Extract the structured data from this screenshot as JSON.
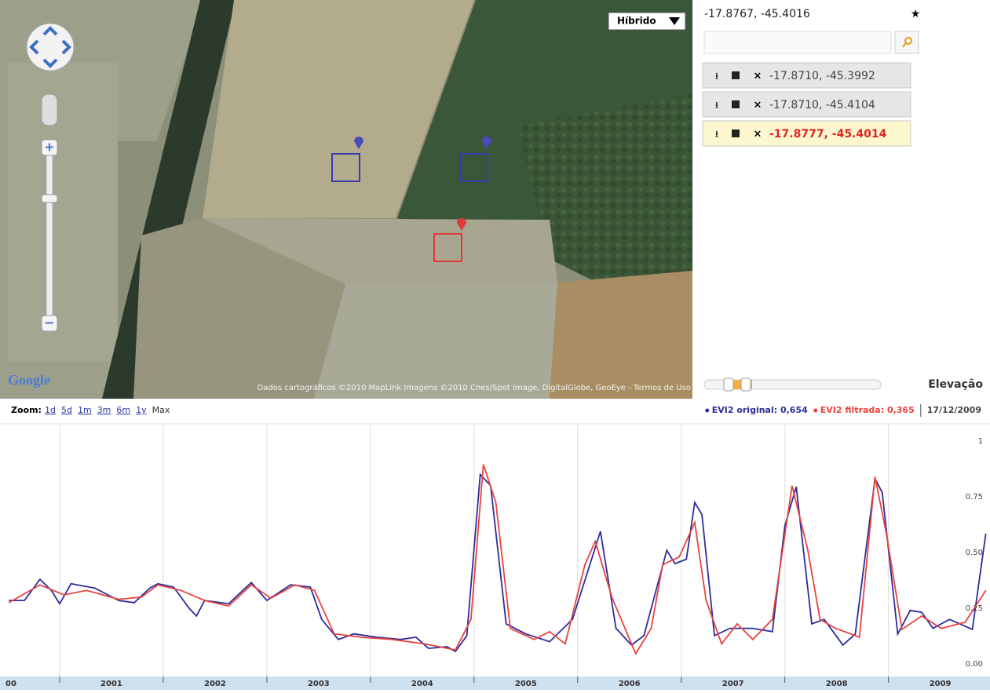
{
  "map": {
    "map_type": "Híbrido",
    "logo": "Google",
    "attribution": "Dados cartográficos ©2010 MapLink Imagens ©2010 Cnes/Spot Image, DigitalGlobe, GeoEye - Termos de Uso"
  },
  "sidebar": {
    "current_coords": "-17.8767, -45.4016",
    "points": [
      {
        "coords": "-17.8710, -45.3992"
      },
      {
        "coords": "-17.8710, -45.4104"
      },
      {
        "coords": "-17.8777, -45.4014"
      }
    ],
    "elevation_label": "Elevação"
  },
  "chart": {
    "type": "line",
    "zoom_label": "Zoom:",
    "zoom_options": [
      "1d",
      "5d",
      "1m",
      "3m",
      "6m",
      "1y",
      "Max"
    ],
    "date": "17/12/2009",
    "xlim": [
      2000.5,
      2009.95
    ],
    "ylim": [
      0,
      1
    ],
    "xticks": [
      2001,
      2002,
      2003,
      2004,
      2005,
      2006,
      2007,
      2008,
      2009
    ],
    "year_labels": [
      "00",
      "2001",
      "2002",
      "2003",
      "2004",
      "2005",
      "2006",
      "2007",
      "2008",
      "2009"
    ],
    "yticks": [
      {
        "value": 0,
        "label": "0.00"
      },
      {
        "value": 0.25,
        "label": "0.25"
      },
      {
        "value": 0.5,
        "label": "0.50"
      },
      {
        "value": 0.75,
        "label": "0.75"
      },
      1
    ],
    "series": [
      {
        "name": "EVI2 original: 0,654",
        "color": "#2c2c9c",
        "x": [
          2000.51,
          2000.66,
          2000.81,
          2000.92,
          2001.0,
          2001.11,
          2001.34,
          2001.57,
          2001.72,
          2001.87,
          2001.95,
          2002.1,
          2002.25,
          2002.32,
          2002.4,
          2002.63,
          2002.85,
          2003.0,
          2003.23,
          2003.42,
          2003.53,
          2003.69,
          2003.84,
          2004.06,
          2004.29,
          2004.44,
          2004.56,
          2004.74,
          2004.82,
          2004.93,
          2005.06,
          2005.16,
          2005.31,
          2005.5,
          2005.73,
          2005.95,
          2006.22,
          2006.37,
          2006.52,
          2006.64,
          2006.86,
          2006.94,
          2007.05,
          2007.13,
          2007.2,
          2007.32,
          2007.47,
          2007.69,
          2007.88,
          2008.0,
          2008.11,
          2008.26,
          2008.38,
          2008.56,
          2008.68,
          2008.87,
          2008.94,
          2009.09,
          2009.21,
          2009.32,
          2009.43,
          2009.59,
          2009.81,
          2009.94
        ],
        "values": [
          0.285,
          0.285,
          0.38,
          0.33,
          0.27,
          0.36,
          0.34,
          0.285,
          0.275,
          0.34,
          0.36,
          0.345,
          0.25,
          0.215,
          0.285,
          0.27,
          0.365,
          0.285,
          0.355,
          0.345,
          0.2,
          0.11,
          0.135,
          0.12,
          0.11,
          0.12,
          0.07,
          0.077,
          0.056,
          0.127,
          0.85,
          0.8,
          0.18,
          0.135,
          0.1,
          0.2,
          0.595,
          0.16,
          0.085,
          0.127,
          0.51,
          0.45,
          0.47,
          0.725,
          0.67,
          0.127,
          0.16,
          0.16,
          0.145,
          0.62,
          0.795,
          0.18,
          0.2,
          0.085,
          0.134,
          0.83,
          0.77,
          0.134,
          0.24,
          0.232,
          0.16,
          0.2,
          0.155,
          0.585
        ]
      },
      {
        "name": "EVI2 filtrada: 0,365",
        "color": "#e8433f",
        "x": [
          2000.51,
          2000.81,
          2001.04,
          2001.26,
          2001.57,
          2001.79,
          2001.95,
          2002.17,
          2002.4,
          2002.63,
          2002.85,
          2003.04,
          2003.27,
          2003.46,
          2003.65,
          2003.91,
          2004.21,
          2004.52,
          2004.82,
          2004.97,
          2005.09,
          2005.21,
          2005.35,
          2005.58,
          2005.73,
          2005.88,
          2006.07,
          2006.17,
          2006.33,
          2006.56,
          2006.71,
          2006.82,
          2006.98,
          2007.13,
          2007.24,
          2007.39,
          2007.54,
          2007.69,
          2007.88,
          2008.07,
          2008.22,
          2008.34,
          2008.49,
          2008.72,
          2008.87,
          2008.98,
          2009.13,
          2009.32,
          2009.51,
          2009.74,
          2009.94
        ],
        "values": [
          0.275,
          0.355,
          0.31,
          0.33,
          0.29,
          0.3,
          0.355,
          0.33,
          0.285,
          0.26,
          0.355,
          0.295,
          0.355,
          0.33,
          0.135,
          0.12,
          0.11,
          0.09,
          0.063,
          0.2,
          0.895,
          0.725,
          0.16,
          0.11,
          0.145,
          0.09,
          0.445,
          0.55,
          0.3,
          0.046,
          0.16,
          0.445,
          0.48,
          0.635,
          0.285,
          0.09,
          0.18,
          0.11,
          0.2,
          0.8,
          0.515,
          0.2,
          0.16,
          0.12,
          0.84,
          0.585,
          0.155,
          0.215,
          0.16,
          0.187,
          0.33
        ]
      }
    ]
  }
}
